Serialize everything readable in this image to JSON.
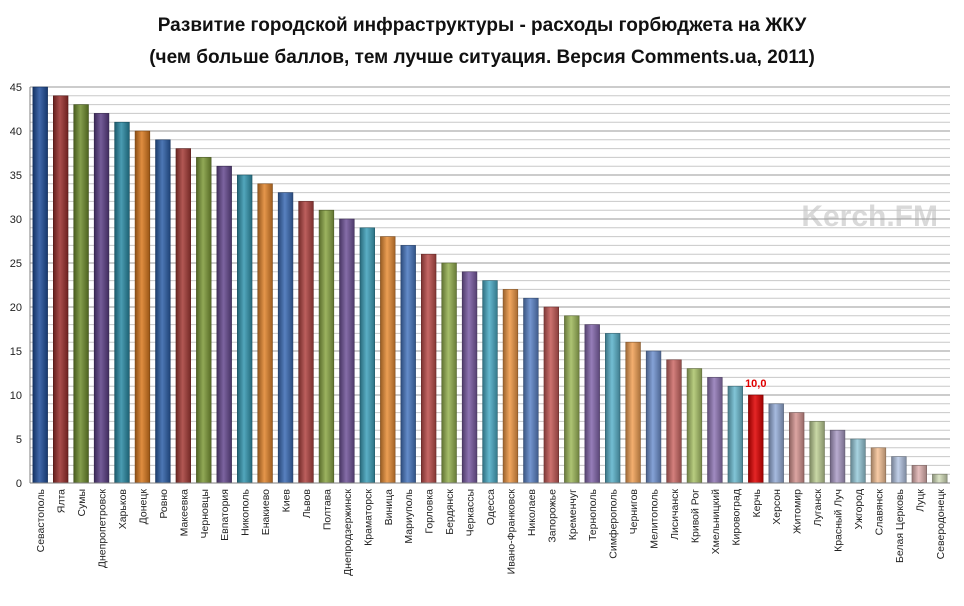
{
  "watermark": "Kerch.FM",
  "chart_data": {
    "type": "bar",
    "title": "Развитие городской инфраструктуры - расходы горбюджета на ЖКУ",
    "subtitle": "(чем больше баллов, тем лучше ситуация. Версия Comments.ua, 2011)",
    "xlabel": "",
    "ylabel": "",
    "ylim": [
      0,
      45
    ],
    "yticks": [
      0,
      5,
      10,
      15,
      20,
      25,
      30,
      35,
      40,
      45
    ],
    "grid": true,
    "categories": [
      "Севастополь",
      "Ялта",
      "Сумы",
      "Днепропетровск",
      "Харьков",
      "Донецк",
      "Ровно",
      "Макеевка",
      "Черновцы",
      "Евпатория",
      "Никополь",
      "Енакиево",
      "Киев",
      "Львов",
      "Полтава",
      "Днепродзержинск",
      "Краматорск",
      "Виница",
      "Мариуполь",
      "Горловка",
      "Бердянск",
      "Черкассы",
      "Одесса",
      "Ивано-Франковск",
      "Николаев",
      "Запорожье",
      "Кременчуг",
      "Тернополь",
      "Симферополь",
      "Чернигов",
      "Мелитополь",
      "Лисичанск",
      "Кривой Рог",
      "Хмельницкий",
      "Кировоград",
      "Керчь",
      "Херсон",
      "Житомир",
      "Луганск",
      "Красный Луч",
      "Ужгород",
      "Славянск",
      "Белая Церковь",
      "Луцк",
      "Северодонецк"
    ],
    "values": [
      45,
      44,
      43,
      42,
      41,
      40,
      39,
      38,
      37,
      36,
      35,
      34,
      33,
      32,
      31,
      30,
      29,
      28,
      27,
      26,
      25,
      24,
      23,
      22,
      21,
      20,
      19,
      18,
      17,
      16,
      15,
      14,
      13,
      12,
      11,
      10,
      9,
      8,
      7,
      6,
      5,
      4,
      3,
      2,
      1
    ],
    "colors": [
      "#1f4e9c",
      "#9b2f2c",
      "#6f8d2e",
      "#5b3f86",
      "#2a8aa4",
      "#d9791e",
      "#2d5fa8",
      "#a43a36",
      "#7d9a38",
      "#65498f",
      "#3396b0",
      "#e0832b",
      "#3a6bb5",
      "#b04340",
      "#8aa644",
      "#6f5399",
      "#3ea1bb",
      "#e88d36",
      "#4776c0",
      "#bb4d4a",
      "#95b050",
      "#795ca3",
      "#4aacc6",
      "#ef9744",
      "#5b84c8",
      "#c45956",
      "#a0ba5c",
      "#8467ad",
      "#5ab3cb",
      "#f2a155",
      "#7092d0",
      "#cc6966",
      "#abc46a",
      "#9077b6",
      "#6cbbd0",
      "#e00000",
      "#96aed9",
      "#d69592",
      "#c0d196",
      "#ab9cc6",
      "#98cbdb",
      "#f5c296",
      "#b6c7e4",
      "#e2b4b2",
      "#d6e0bd"
    ],
    "annotations": [
      {
        "category": "Керчь",
        "text": "10,0",
        "color": "#e00000"
      }
    ]
  }
}
